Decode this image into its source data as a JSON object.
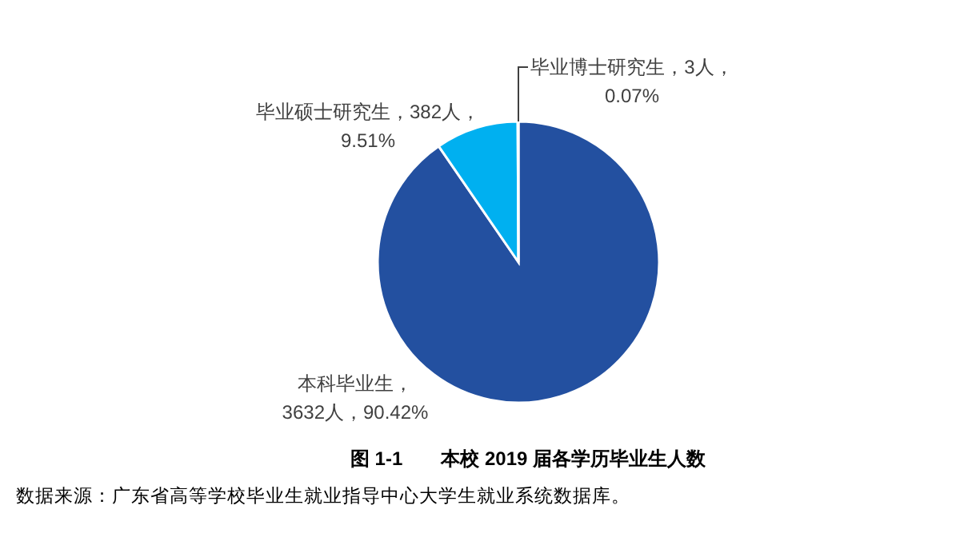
{
  "chart_data": {
    "type": "pie",
    "title": "图 1-1　　本校 2019 届各学历毕业生人数",
    "categories": [
      "本科毕业生",
      "毕业硕士研究生",
      "毕业博士研究生"
    ],
    "values": [
      3632,
      382,
      3
    ],
    "value_labels": [
      "，3632人，90.42%",
      "，382人，9.51%",
      "，3人，0.07%"
    ],
    "colors": [
      "#2350a0",
      "#00b0f0",
      "#1f3f80"
    ],
    "annotations": [
      "数据来源：广东省高等学校毕业生就业指导中心大学生就业系统数据库。"
    ]
  }
}
